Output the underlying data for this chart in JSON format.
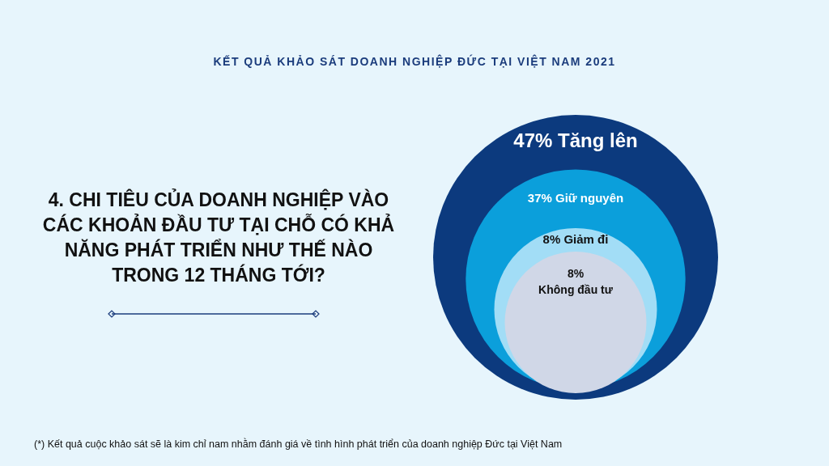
{
  "chart_data": {
    "type": "other",
    "subtitle": "KẾT QUẢ KHẢO SÁT DOANH NGHIỆP ĐỨC TẠI VIỆT NAM 2021",
    "title": "4. CHI TIÊU CỦA DOANH NGHIỆP VÀO CÁC KHOẢN ĐẦU TƯ TẠI CHỖ CÓ KHẢ NĂNG PHÁT TRIỂN NHƯ THẾ NÀO TRONG 12 THÁNG TỚI?",
    "categories": [
      "Tăng lên",
      "Giữ nguyên",
      "Giảm đi",
      "Không đầu tư"
    ],
    "values": [
      47,
      37,
      8,
      8
    ],
    "value_labels": [
      "47%",
      "37%",
      "8%",
      "8%"
    ],
    "colors": [
      "#0c3a7e",
      "#0b9fdb",
      "#a2ddf6",
      "#d0d7e7"
    ],
    "annotations": [
      "(*) Kết quả cuộc khảo sát sẽ là kim chỉ nam nhằm đánh giá về tình hình phát triển của doanh nghiệp Đức tại Việt Nam"
    ]
  }
}
